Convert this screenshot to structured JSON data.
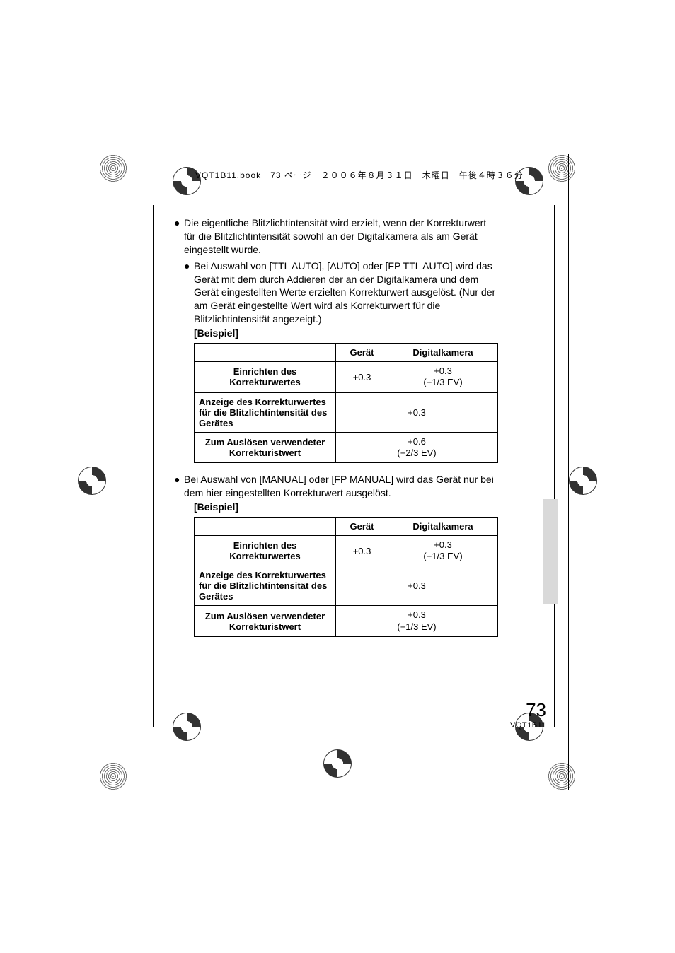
{
  "header": {
    "filename": "VQT1B11.book",
    "page_label": "73 ページ",
    "date": "２００６年８月３１日",
    "weekday": "木曜日",
    "time": "午後４時３６分"
  },
  "bullets": {
    "b1": "Die eigentliche Blitzlichtintensität wird erzielt, wenn der Korrekturwert für die Blitzlichtintensität sowohl an der Digitalkamera als am Gerät eingestellt wurde.",
    "b1_sub": "Bei Auswahl von [TTL AUTO], [AUTO] oder [FP TTL AUTO] wird das Gerät mit dem durch Addieren der an der Digitalkamera und dem Gerät eingestellten Werte erzielten Korrekturwert ausgelöst. (Nur der am Gerät eingestellte Wert wird als Korrekturwert für die Blitzlichtintensität angezeigt.)",
    "b2_sub": "Bei Auswahl von [MANUAL] oder [FP MANUAL] wird das Gerät nur bei dem hier eingestellten Korrekturwert ausgelöst.",
    "beispiel": "[Beispiel]"
  },
  "table_common": {
    "col_blank": "",
    "col_geraet": "Gerät",
    "col_kamera": "Digitalkamera",
    "row1": "Einrichten des Korrekturwertes",
    "row2": "Anzeige des Korrekturwertes für die Blitzlichtintensität des Gerätes",
    "row3": "Zum Auslösen verwendeter Korrekturistwert"
  },
  "table1": {
    "r1c1": "+0.3",
    "r1c2_a": "+0.3",
    "r1c2_b": "(+1/3 EV)",
    "r2": "+0.3",
    "r3_a": "+0.6",
    "r3_b": "(+2/3 EV)"
  },
  "table2": {
    "r1c1": "+0.3",
    "r1c2_a": "+0.3",
    "r1c2_b": "(+1/3 EV)",
    "r2": "+0.3",
    "r3_a": "+0.3",
    "r3_b": "(+1/3 EV)"
  },
  "footer": {
    "page_number": "73",
    "doc_code": "VQT1B11"
  },
  "glyphs": {
    "dot": "●"
  },
  "colors": {
    "text": "#000000",
    "background": "#ffffff",
    "tab": "#d9d9d9"
  }
}
